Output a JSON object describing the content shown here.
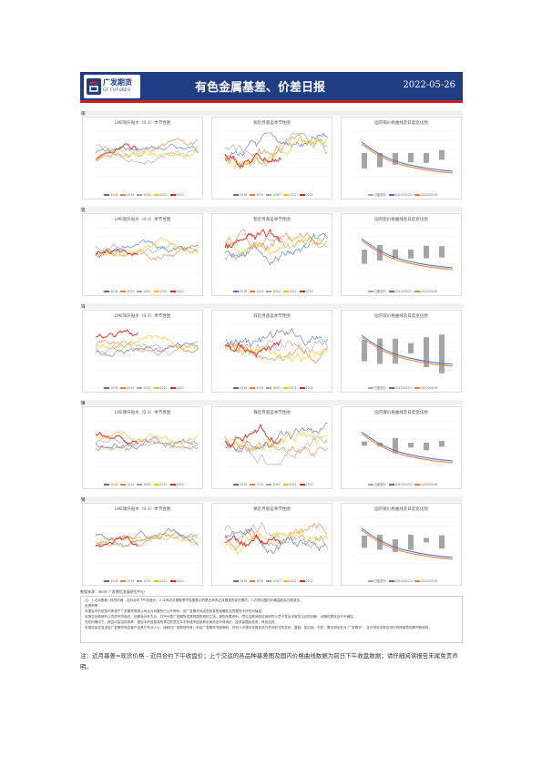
{
  "header": {
    "logo_cn": "广发期货",
    "logo_en": "GF FUTURES",
    "title": "有色金属基差、价差日报",
    "date": "2022-05-26"
  },
  "colors": {
    "banner": "#1f3d82",
    "accent_red": "#cf1f26",
    "series": [
      "#4472c4",
      "#ed7d31",
      "#a5a5a5",
      "#ffc000",
      "#e8201c"
    ]
  },
  "sections": [
    {
      "label": "铜",
      "panels": {
        "lme": {
          "title": "LME铜升贴水（0-3）季节性图",
          "legend": [
            "2018",
            "2019",
            "2020",
            "2021",
            "2022"
          ]
        },
        "basis": {
          "title": "铜近月基差季节性图",
          "legend": [
            "2018",
            "2019",
            "2020",
            "2021",
            "2022"
          ]
        },
        "spread": {
          "title": "国内铜价格曲线及日度变化图",
          "legend": [
            "日度变化",
            "2022/05/25",
            "2022/05/26"
          ]
        }
      }
    },
    {
      "label": "铝",
      "panels": {
        "lme": {
          "title": "LME铝升贴水（0-3）季节性图",
          "legend": [
            "2018",
            "2019",
            "2020",
            "2021",
            "2022"
          ]
        },
        "basis": {
          "title": "铝近月基差季节性图",
          "legend": [
            "2018",
            "2019",
            "2020",
            "2021",
            "2022"
          ]
        },
        "spread": {
          "title": "国内铝价格曲线及日度变化图",
          "legend": [
            "日度变化",
            "2022/05/25",
            "2022/05/26"
          ]
        }
      }
    },
    {
      "label": "锌",
      "panels": {
        "lme": {
          "title": "LME锌升贴水（0-3）季节性图",
          "legend": [
            "2018",
            "2019",
            "2020",
            "2021",
            "2022"
          ]
        },
        "basis": {
          "title": "锌近月基差季节性图",
          "legend": [
            "2018",
            "2019",
            "2020",
            "2021",
            "2022"
          ]
        },
        "spread": {
          "title": "国内锌价格曲线及日度变化图",
          "legend": [
            "日度变化",
            "2022/05/25",
            "2022/05/26"
          ]
        }
      }
    },
    {
      "label": "镍",
      "panels": {
        "lme": {
          "title": "LME镍升贴水（0-3）季节性图",
          "legend": [
            "2018",
            "2019",
            "2020",
            "2021",
            "2022"
          ]
        },
        "basis": {
          "title": "镍近月基差季节性图",
          "legend": [
            "2018",
            "2019",
            "2020",
            "2021",
            "2022"
          ]
        },
        "spread": {
          "title": "国内镍价格曲线及日度变化图",
          "legend": [
            "日度变化",
            "2022/05/25",
            "2022/05/26"
          ]
        }
      }
    },
    {
      "label": "锡",
      "panels": {
        "lme": {
          "title": "LME锡升贴水（0-3）季节性图",
          "legend": [
            "2018",
            "2019",
            "2020",
            "2021",
            "2022"
          ]
        },
        "basis": {
          "title": "锡近月基差季节性图",
          "legend": [
            "2018",
            "2019",
            "2020",
            "2021",
            "2022"
          ]
        },
        "spread": {
          "title": "国内锡价格曲线及日度变化图",
          "legend": [
            "日度变化",
            "2022/05/25",
            "2022/05/26"
          ]
        }
      }
    }
  ],
  "source": "数据来源：wind 广发期货发展研究中心",
  "notes": [
    "注：1.近月基差=现货价格 - 近月合约下午收盘价；2.中间近月基差季节性图展示的是近年来近月基差的变化情况；3.右侧为国内价格曲线及日度变化。",
    "免责声明",
    "本报告中的信息均来源于广发期货有限公司认为可靠的已公开资料，但广发期货对这些信息的准确性及完整性不作任何保证。",
    "本报告反映研究人员的不同观点、见解及分析方法，并不代表广发期货或其附属机构的立场。报告所载资料、意见及推测仅反映研究人员于发出本报告当日的判断，可随时更改且不予通告。",
    "在任何情况下，报告内容仅供参考，报告中的信息或所表达的意见并不构成所述品种买卖的出价或询价，投资者据此投资，风险自担。",
    "本报告旨在发送给广发期货特定客户及其它专业人士，版权归广发期货所有，未经广发期货书面授权，任何人不得对本报告进行任何形式的发布、复制。如引用、刊发，需注明出处为“广发期货”，且不得对本报告进行有悖原意的删节和修改。"
  ],
  "footnote": "注：近月基差=现货价格 - 近月合约下午收盘价；上个交运的各品种基差图及国内价格曲线数据为前日下午收盘数据；请仔细阅读报告末尾免责声明。"
}
